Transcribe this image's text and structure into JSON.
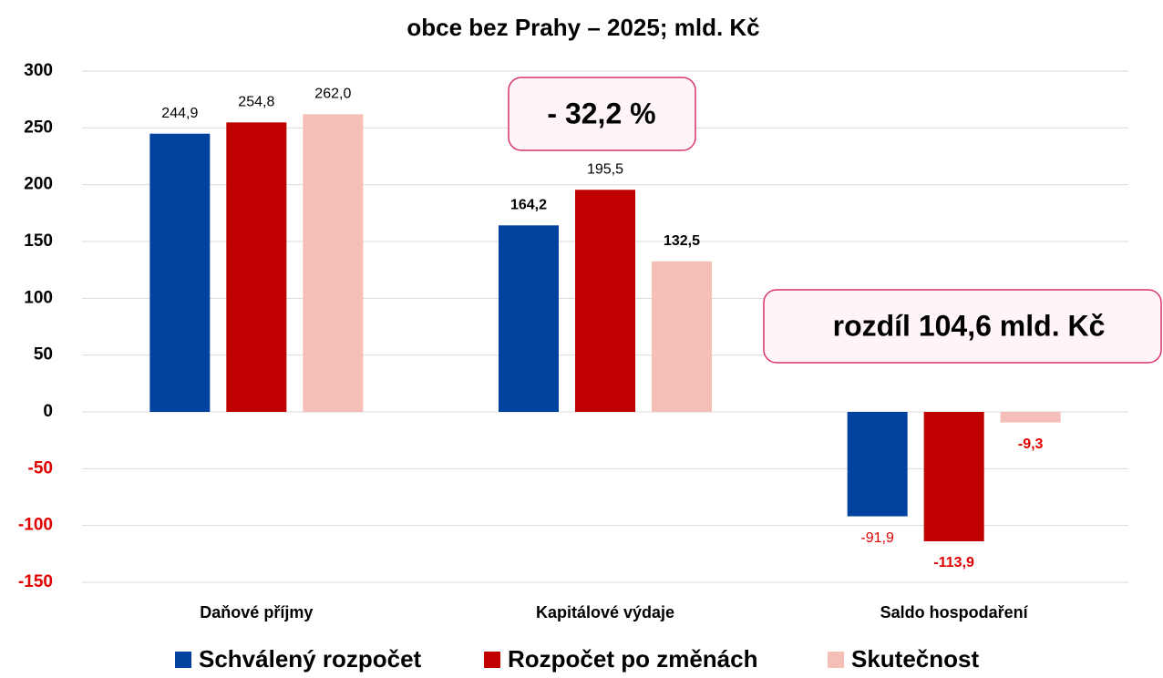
{
  "chart_data": {
    "type": "bar",
    "title": "obce bez Prahy – 2025; mld. Kč",
    "categories": [
      "Daňové příjmy",
      "Kapitálové výdaje",
      "Saldo hospodaření"
    ],
    "series": [
      {
        "name": "Schválený rozpočet",
        "color": "#00429d",
        "values": [
          244.9,
          164.2,
          -91.9
        ],
        "value_labels": [
          "244,9",
          "164,2",
          "-91,9"
        ]
      },
      {
        "name": "Rozpočet po změnách",
        "color": "#c00000",
        "values": [
          254.8,
          195.5,
          -113.9
        ],
        "value_labels": [
          "254,8",
          "195,5",
          "-113,9"
        ]
      },
      {
        "name": "Skutečnost",
        "color": "#f5bfb8",
        "values": [
          262.0,
          132.5,
          -9.3
        ],
        "value_labels": [
          "262,0",
          "132,5",
          "-9,3"
        ]
      }
    ],
    "ylim": [
      -150,
      300
    ],
    "yticks": [
      -150,
      -100,
      -50,
      0,
      50,
      100,
      150,
      200,
      250,
      300
    ],
    "grid": true,
    "legend": "bottom",
    "annotations": [
      "- 32,2 %",
      "rozdíl 104,6 mld. Kč"
    ]
  }
}
